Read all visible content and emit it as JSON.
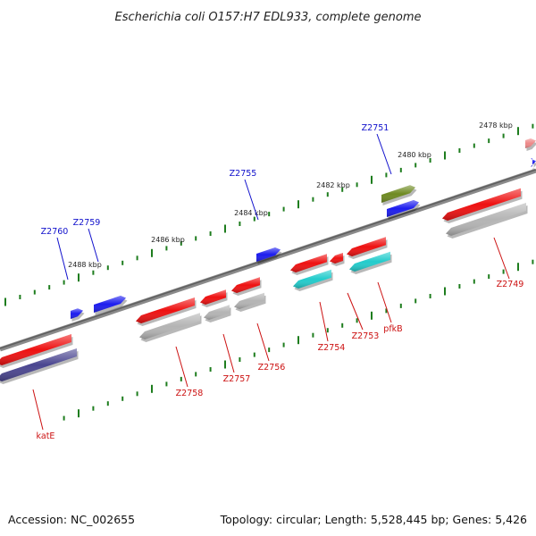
{
  "title": "Escherichia coli O157:H7 EDL933, complete genome",
  "accession": "Accession: NC_002655",
  "topology": "Topology: circular; Length: 5,528,445 bp; Genes: 5,426",
  "colors": {
    "backbone": "#777777",
    "ticks": "#1e7d1e",
    "forward_label": "#1111cc",
    "reverse_label": "#cc1111",
    "red_gene": "#ee1111",
    "grey_gene": "#b4b4b4",
    "blue_gene": "#1c1cee",
    "cyan_gene": "#22cccc",
    "olive_gene": "#6e8a22",
    "navy_gene": "#4a4690",
    "pink_gene": "#ee8888"
  },
  "kbp_labels": [
    "2478 kbp",
    "2480 kbp",
    "2482 kbp",
    "2484 kbp",
    "2486 kbp",
    "2488 kbp"
  ],
  "gene_labels": {
    "forward": [
      "Z2751",
      "Z2755",
      "Z2759",
      "Z2760"
    ],
    "reverse": [
      "Z2749",
      "pfkB",
      "Z2753",
      "Z2754",
      "Z2756",
      "Z2757",
      "Z2758",
      "katE"
    ]
  }
}
